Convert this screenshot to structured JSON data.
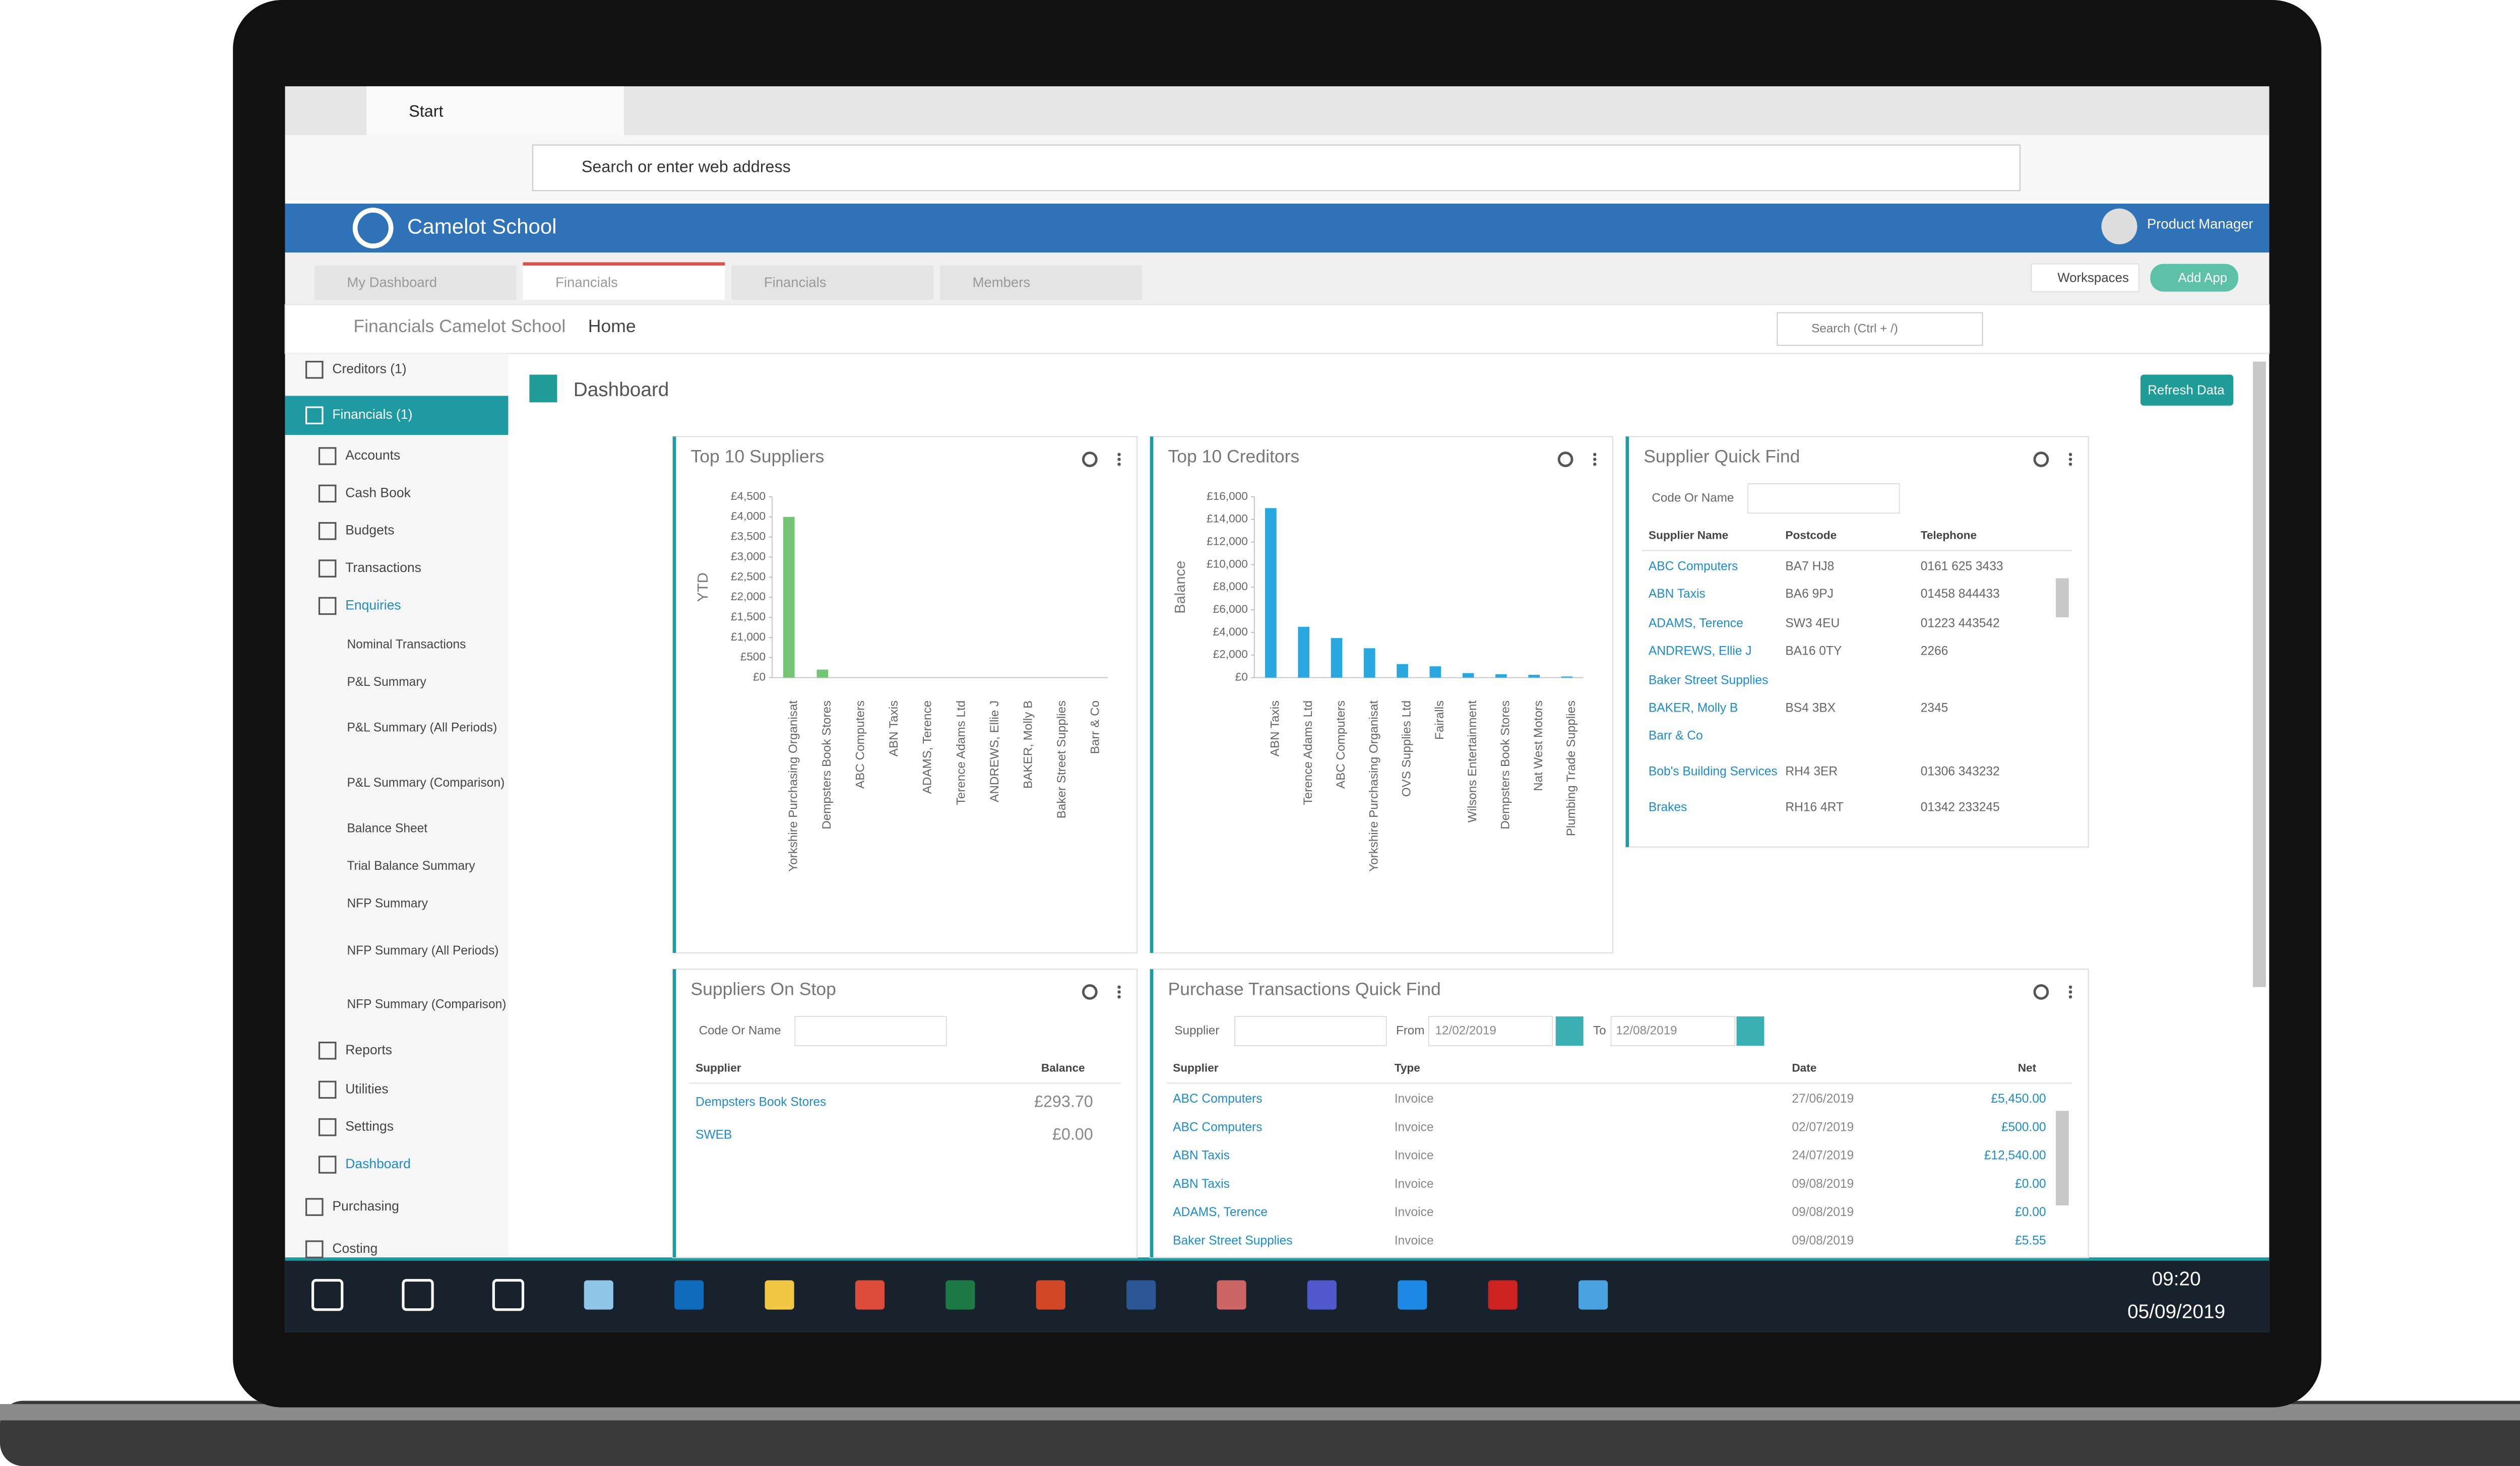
{
  "browser": {
    "tab": "Start",
    "address": "Search or enter web address"
  },
  "app": {
    "name": "Camelot School",
    "user": "Product Manager"
  },
  "tabs": [
    "My Dashboard",
    "Financials",
    "Financials",
    "Members"
  ],
  "toolbar": {
    "workspaces": "Workspaces",
    "add_app": "Add App",
    "search": "Search (Ctrl + /)"
  },
  "breadcrumb": [
    "Financials Camelot School",
    "Home"
  ],
  "sidebar": [
    "Creditors (1)",
    "Financials (1)",
    "Accounts",
    "Cash Book",
    "Budgets",
    "Transactions",
    "Enquiries",
    "Nominal Transactions",
    "P&L Summary",
    "P&L Summary (All Periods)",
    "P&L Summary (Comparison)",
    "Balance Sheet",
    "Trial Balance Summary",
    "NFP Summary",
    "NFP Summary (All Periods)",
    "NFP Summary (Comparison)",
    "Reports",
    "Utilities",
    "Settings",
    "Dashboard",
    "Purchasing",
    "Costing"
  ],
  "dashboard": {
    "title": "Dashboard",
    "refresh": "Refresh Data"
  },
  "charts": [
    {
      "type": "bar",
      "title": "Top 10 Suppliers",
      "y_label": "YTD",
      "color": "#74c476",
      "categories": [
        "Yorkshire Purchasing Organisat",
        "Dempsters Book Stores",
        "ABC Computers",
        "ABN Taxis",
        "ADAMS, Terence",
        "Terence Adams Ltd",
        "ANDREWS, Ellie J",
        "BAKER, Molly B",
        "Baker Street Supplies",
        "Barr & Co"
      ],
      "values": [
        4000,
        200,
        0,
        0,
        0,
        0,
        0,
        0,
        0,
        0
      ],
      "ylim": [
        0,
        4500
      ],
      "yticks": [
        {
          "value": 0,
          "label": "£0"
        },
        {
          "value": 500,
          "label": "£500"
        },
        {
          "value": 1000,
          "label": "£1,000"
        },
        {
          "value": 1500,
          "label": "£1,500"
        },
        {
          "value": 2000,
          "label": "£2,000"
        },
        {
          "value": 2500,
          "label": "£2,500"
        },
        {
          "value": 3000,
          "label": "£3,000"
        },
        {
          "value": 3500,
          "label": "£3,500"
        },
        {
          "value": 4000,
          "label": "£4,000"
        },
        {
          "value": 4500,
          "label": "£4,500"
        }
      ]
    },
    {
      "type": "bar",
      "title": "Top 10 Creditors",
      "y_label": "Balance",
      "color": "#29a8e0",
      "categories": [
        "ABN Taxis",
        "Terence Adams Ltd",
        "ABC Computers",
        "Yorkshire Purchasing Organisat",
        "OVS Supplies Ltd",
        "Fairalls",
        "Wilsons Entertainment",
        "Dempsters Book Stores",
        "Nat West Motors",
        "Plumbing Trade Supplies"
      ],
      "values": [
        15000,
        4500,
        3500,
        2600,
        1200,
        1000,
        400,
        300,
        250,
        100
      ],
      "ylim": [
        0,
        16000
      ],
      "yticks": [
        {
          "value": 0,
          "label": "£0"
        },
        {
          "value": 2000,
          "label": "£2,000"
        },
        {
          "value": 4000,
          "label": "£4,000"
        },
        {
          "value": 6000,
          "label": "£6,000"
        },
        {
          "value": 8000,
          "label": "£8,000"
        },
        {
          "value": 10000,
          "label": "£10,000"
        },
        {
          "value": 12000,
          "label": "£12,000"
        },
        {
          "value": 14000,
          "label": "£14,000"
        },
        {
          "value": 16000,
          "label": "£16,000"
        }
      ]
    }
  ],
  "supplier_quick_find": {
    "title": "Supplier Quick Find",
    "field": "Code Or Name",
    "columns": [
      "Supplier Name",
      "Postcode",
      "Telephone"
    ],
    "rows": [
      {
        "name": "ABC Computers",
        "postcode": "BA7 HJ8",
        "telephone": "0161 625 3433"
      },
      {
        "name": "ABN Taxis",
        "postcode": "BA6 9PJ",
        "telephone": "01458 844433"
      },
      {
        "name": "ADAMS, Terence",
        "postcode": "SW3 4EU",
        "telephone": "01223 443542"
      },
      {
        "name": "ANDREWS, Ellie J",
        "postcode": "BA16 0TY",
        "telephone": "2266"
      },
      {
        "name": "Baker Street Supplies"
      },
      {
        "name": "BAKER, Molly B",
        "postcode": "BS4 3BX",
        "telephone": "2345"
      },
      {
        "name": "Barr & Co"
      },
      {
        "name": "Bob's Building Services",
        "postcode": "RH4 3ER",
        "telephone": "01306 343232"
      },
      {
        "name": "Brakes",
        "postcode": "RH16 4RT",
        "telephone": "01342 233245"
      }
    ]
  },
  "suppliers_on_stop": {
    "title": "Suppliers On Stop",
    "field": "Code Or Name",
    "columns": [
      "Supplier",
      "Balance"
    ],
    "rows": [
      [
        "Dempsters Book Stores",
        "£293.70"
      ],
      [
        "SWEB",
        "£0.00"
      ]
    ]
  },
  "purchase_transactions": {
    "title": "Purchase Transactions Quick Find",
    "supplier": "Supplier",
    "from": "From",
    "from_date": "12/02/2019",
    "to": "To",
    "to_date": "12/08/2019",
    "columns": [
      "Supplier",
      "Type",
      "Date",
      "Net"
    ],
    "rows": [
      [
        "ABC Computers",
        "Invoice",
        "27/06/2019",
        "£5,450.00"
      ],
      [
        "ABC Computers",
        "Invoice",
        "02/07/2019",
        "£500.00"
      ],
      [
        "ABN Taxis",
        "Invoice",
        "24/07/2019",
        "£12,540.00"
      ],
      [
        "ABN Taxis",
        "Invoice",
        "09/08/2019",
        "£0.00"
      ],
      [
        "ADAMS, Terence",
        "Invoice",
        "09/08/2019",
        "£0.00"
      ],
      [
        "Baker Street Supplies",
        "Invoice",
        "09/08/2019",
        "£5.55"
      ]
    ]
  },
  "taskbar": {
    "time": "09:20",
    "date": "05/09/2019"
  }
}
